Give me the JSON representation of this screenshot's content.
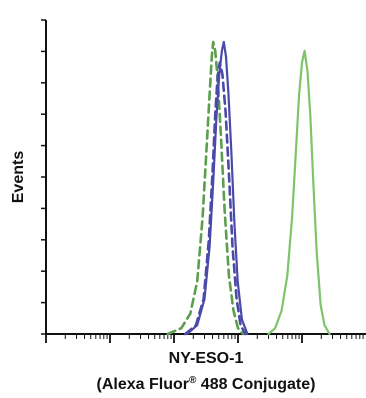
{
  "chart_data": {
    "type": "line",
    "title": "",
    "xlabel": "NY-ESO-1",
    "xlabel_line2_before": "(Alexa Fluor",
    "xlabel_line2_sup": "®",
    "xlabel_line2_after": " 488 Conjugate)",
    "ylabel": "Events",
    "x_scale": "log",
    "xlim": [
      1,
      100000
    ],
    "ylim": [
      0,
      100
    ],
    "grid": false,
    "legend": "none",
    "series": [
      {
        "style": "dashed",
        "color": "#5a9e4e",
        "points": [
          [
            80,
            0
          ],
          [
            130,
            2
          ],
          [
            180,
            7
          ],
          [
            230,
            18
          ],
          [
            280,
            40
          ],
          [
            320,
            62
          ],
          [
            360,
            82
          ],
          [
            390,
            95
          ],
          [
            410,
            100
          ],
          [
            440,
            97
          ],
          [
            480,
            88
          ],
          [
            540,
            68
          ],
          [
            620,
            42
          ],
          [
            720,
            20
          ],
          [
            850,
            8
          ],
          [
            1000,
            2
          ],
          [
            1200,
            0
          ]
        ]
      },
      {
        "style": "dashed",
        "color": "#4a4aa8",
        "points": [
          [
            150,
            0
          ],
          [
            220,
            3
          ],
          [
            290,
            12
          ],
          [
            350,
            32
          ],
          [
            400,
            55
          ],
          [
            440,
            75
          ],
          [
            480,
            88
          ],
          [
            520,
            93
          ],
          [
            570,
            89
          ],
          [
            640,
            76
          ],
          [
            720,
            55
          ],
          [
            820,
            30
          ],
          [
            950,
            12
          ],
          [
            1100,
            3
          ],
          [
            1300,
            0
          ]
        ]
      },
      {
        "style": "solid",
        "color": "#4a4aa8",
        "points": [
          [
            160,
            0
          ],
          [
            230,
            3
          ],
          [
            300,
            12
          ],
          [
            360,
            30
          ],
          [
            410,
            52
          ],
          [
            460,
            74
          ],
          [
            510,
            89
          ],
          [
            560,
            97
          ],
          [
            600,
            100
          ],
          [
            650,
            95
          ],
          [
            710,
            82
          ],
          [
            790,
            62
          ],
          [
            880,
            38
          ],
          [
            990,
            18
          ],
          [
            1150,
            5
          ],
          [
            1400,
            0
          ]
        ]
      },
      {
        "style": "solid",
        "color": "#7ec46a",
        "points": [
          [
            3000,
            0
          ],
          [
            3800,
            2
          ],
          [
            4800,
            8
          ],
          [
            5900,
            20
          ],
          [
            7000,
            40
          ],
          [
            8000,
            62
          ],
          [
            9000,
            82
          ],
          [
            10000,
            93
          ],
          [
            11000,
            97
          ],
          [
            12200,
            90
          ],
          [
            13500,
            75
          ],
          [
            15000,
            52
          ],
          [
            17000,
            28
          ],
          [
            19500,
            10
          ],
          [
            22500,
            3
          ],
          [
            27000,
            0
          ]
        ]
      }
    ]
  }
}
